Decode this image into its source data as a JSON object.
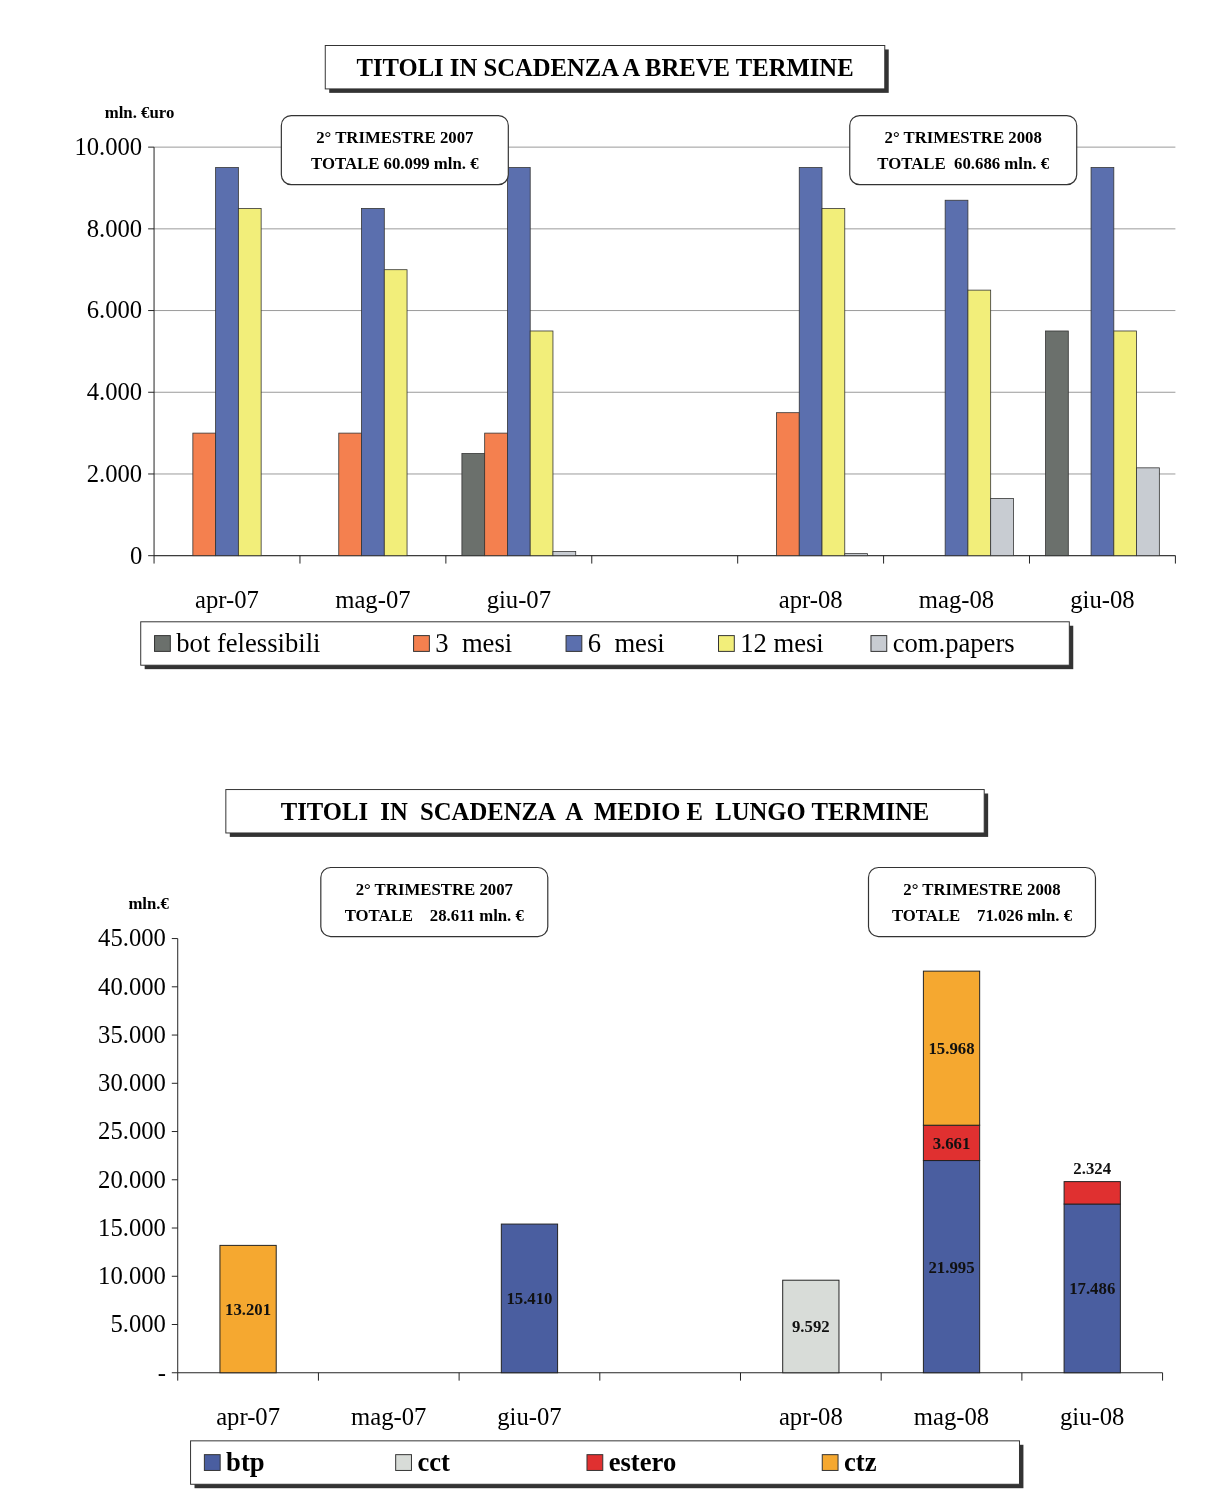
{
  "chart_data": [
    {
      "type": "bar",
      "title": "TITOLI IN SCADENZA A BREVE TERMINE",
      "ylabel": "mln. €uro",
      "categories": [
        "apr-07",
        "mag-07",
        "giu-07",
        null,
        "apr-08",
        "mag-08",
        "giu-08"
      ],
      "series": [
        {
          "name": "bot felessibili",
          "color": "#6b706c",
          "values": [
            null,
            null,
            2500,
            null,
            null,
            null,
            5500
          ]
        },
        {
          "name": "3  mesi",
          "color": "#f4804f",
          "values": [
            3000,
            3000,
            3000,
            null,
            3500,
            null,
            null
          ]
        },
        {
          "name": "6  mesi",
          "color": "#5b6fae",
          "values": [
            9500,
            8500,
            9500,
            null,
            9500,
            8700,
            9500
          ]
        },
        {
          "name": "12 mesi",
          "color": "#f2ee7a",
          "values": [
            8500,
            7000,
            5500,
            null,
            8500,
            6500,
            5500
          ]
        },
        {
          "name": "com.papers",
          "color": "#c8ccd2",
          "values": [
            null,
            null,
            100,
            null,
            50,
            1400,
            2150
          ]
        }
      ],
      "ylim": [
        0,
        10000
      ],
      "yticks": [
        {
          "value": 0,
          "label": "0"
        },
        {
          "value": 2000,
          "label": "2.000"
        },
        {
          "value": 4000,
          "label": "4.000"
        },
        {
          "value": 6000,
          "label": "6.000"
        },
        {
          "value": 8000,
          "label": "8.000"
        },
        {
          "value": 10000,
          "label": "10.000"
        }
      ],
      "grid": "y",
      "legend": "bottom",
      "annotations": [
        "2° TRIMESTRE 2007\nTOTALE 60.099 mln. €",
        "2° TRIMESTRE 2008\nTOTALE  60.686 mln. €"
      ]
    },
    {
      "type": "bar",
      "title": "TITOLI  IN  SCADENZA  A  MEDIO E  LUNGO TERMINE",
      "ylabel": "mln.€",
      "categories": [
        "apr-07",
        "mag-07",
        "giu-07",
        null,
        "apr-08",
        "mag-08",
        "giu-08"
      ],
      "stacked": true,
      "series": [
        {
          "name": "btp",
          "color": "#4a5ea0",
          "values": [
            null,
            null,
            15410,
            null,
            null,
            21995,
            17486
          ],
          "value_labels": [
            null,
            null,
            "15.410",
            null,
            null,
            "21.995",
            "17.486"
          ]
        },
        {
          "name": "cct",
          "color": "#d8dcd8",
          "values": [
            null,
            null,
            null,
            null,
            9592,
            null,
            null
          ],
          "value_labels": [
            null,
            null,
            null,
            null,
            "9.592",
            null,
            null
          ]
        },
        {
          "name": "estero",
          "color": "#e03030",
          "values": [
            null,
            null,
            null,
            null,
            null,
            3661,
            2324
          ],
          "value_labels": [
            null,
            null,
            null,
            null,
            null,
            "3.661",
            "2.324"
          ]
        },
        {
          "name": "ctz",
          "color": "#f5a830",
          "values": [
            13201,
            null,
            null,
            null,
            null,
            15968,
            null
          ],
          "value_labels": [
            "13.201",
            null,
            null,
            null,
            null,
            "15.968",
            null
          ]
        }
      ],
      "ylim": [
        0,
        45000
      ],
      "yticks": [
        {
          "value": 0,
          "label": "-"
        },
        {
          "value": 5000,
          "label": "5.000"
        },
        {
          "value": 10000,
          "label": "10.000"
        },
        {
          "value": 15000,
          "label": "15.000"
        },
        {
          "value": 20000,
          "label": "20.000"
        },
        {
          "value": 25000,
          "label": "25.000"
        },
        {
          "value": 30000,
          "label": "30.000"
        },
        {
          "value": 35000,
          "label": "35.000"
        },
        {
          "value": 40000,
          "label": "40.000"
        },
        {
          "value": 45000,
          "label": "45.000"
        }
      ],
      "legend": "bottom",
      "annotations": [
        "2° TRIMESTRE 2007\nTOTALE    28.611 mln. €",
        "2° TRIMESTRE 2008\nTOTALE    71.026 mln. €"
      ]
    }
  ]
}
